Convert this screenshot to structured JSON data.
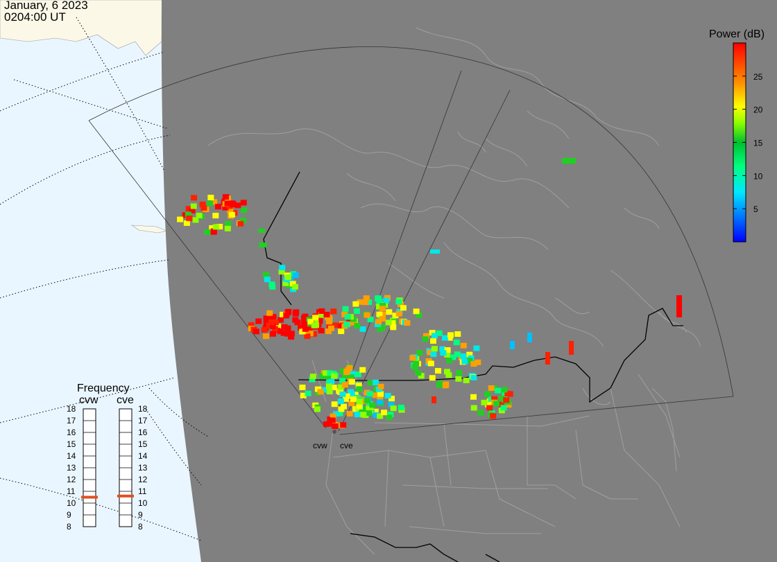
{
  "header": {
    "date": "January, 6 2023",
    "time": "0204:00 UT"
  },
  "colorbar": {
    "title": "Power (dB)",
    "ticks": [
      "5",
      "10",
      "15",
      "20",
      "25"
    ],
    "tick_values": [
      5,
      10,
      15,
      20,
      25
    ],
    "range": [
      0,
      30
    ],
    "colors": [
      "#0000ff",
      "#0080ff",
      "#00e0ff",
      "#00ff80",
      "#00d040",
      "#80ff00",
      "#ffff00",
      "#ff8000",
      "#ff0000"
    ]
  },
  "radars": {
    "west_label": "cvw",
    "east_label": "cve"
  },
  "frequency": {
    "title": "Frequency",
    "col_west": "cvw",
    "col_east": "cve",
    "levels": [
      "18",
      "17",
      "16",
      "15",
      "14",
      "13",
      "12",
      "11",
      "10",
      "9",
      "8"
    ],
    "west_mhz": 10.5,
    "east_mhz": 10.6,
    "marker_color": "#e05020"
  },
  "map_colors": {
    "ocean": "#eaf6ff",
    "land_dark": "#808080",
    "land_light": "#fbf8e8",
    "border": "#000000",
    "grid": "#000000"
  }
}
